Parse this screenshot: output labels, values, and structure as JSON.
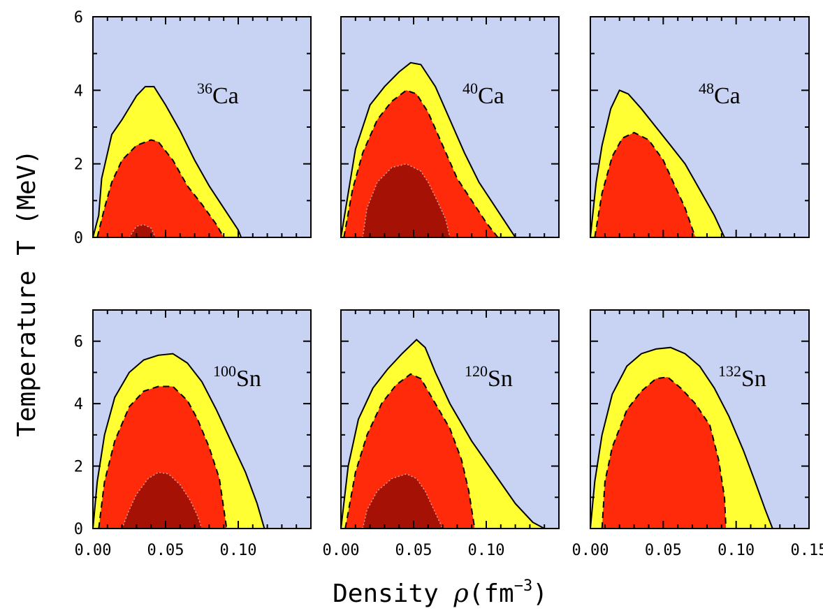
{
  "chart_data": {
    "type": "area",
    "xlabel_text": "Density ",
    "xlabel_symbol": "ρ",
    "xlabel_unit": "(fm",
    "xlabel_exp": "−3",
    "xlabel_close": ")",
    "ylabel": "Temperature T (MeV)",
    "xlim": [
      0.0,
      0.15
    ],
    "colors": {
      "background": "#c8d3f3",
      "outer": "#ffff33",
      "middle": "#ff2a0a",
      "inner": "#a51105"
    },
    "panels": [
      {
        "row": 0,
        "col": 0,
        "mass": "36",
        "element": "Ca",
        "ylim": [
          0,
          6
        ],
        "yticks": [
          "0",
          "2",
          "4",
          "6"
        ],
        "xticks": [],
        "outer": [
          [
            0.0,
            0
          ],
          [
            0.004,
            0.6
          ],
          [
            0.006,
            1.6
          ],
          [
            0.013,
            2.8
          ],
          [
            0.02,
            3.2
          ],
          [
            0.03,
            3.85
          ],
          [
            0.036,
            4.1
          ],
          [
            0.042,
            4.1
          ],
          [
            0.05,
            3.6
          ],
          [
            0.06,
            2.9
          ],
          [
            0.07,
            2.1
          ],
          [
            0.08,
            1.4
          ],
          [
            0.09,
            0.8
          ],
          [
            0.1,
            0.2
          ],
          [
            0.102,
            0
          ]
        ],
        "middle": [
          [
            0.003,
            0
          ],
          [
            0.008,
            0.8
          ],
          [
            0.013,
            1.5
          ],
          [
            0.02,
            2.1
          ],
          [
            0.03,
            2.5
          ],
          [
            0.04,
            2.65
          ],
          [
            0.045,
            2.6
          ],
          [
            0.055,
            2.1
          ],
          [
            0.065,
            1.4
          ],
          [
            0.075,
            0.9
          ],
          [
            0.085,
            0.35
          ],
          [
            0.09,
            0
          ]
        ],
        "inner": [
          [
            0.025,
            0
          ],
          [
            0.03,
            0.3
          ],
          [
            0.035,
            0.35
          ],
          [
            0.04,
            0.25
          ],
          [
            0.043,
            0
          ]
        ]
      },
      {
        "row": 0,
        "col": 1,
        "mass": "40",
        "element": "Ca",
        "ylim": [
          0,
          6
        ],
        "yticks": [],
        "xticks": [],
        "outer": [
          [
            0.0,
            0
          ],
          [
            0.005,
            1.2
          ],
          [
            0.01,
            2.4
          ],
          [
            0.02,
            3.6
          ],
          [
            0.03,
            4.1
          ],
          [
            0.04,
            4.5
          ],
          [
            0.048,
            4.75
          ],
          [
            0.055,
            4.7
          ],
          [
            0.065,
            4.1
          ],
          [
            0.075,
            3.2
          ],
          [
            0.085,
            2.3
          ],
          [
            0.095,
            1.5
          ],
          [
            0.105,
            0.9
          ],
          [
            0.115,
            0.3
          ],
          [
            0.12,
            0
          ]
        ],
        "middle": [
          [
            0.002,
            0
          ],
          [
            0.008,
            1.3
          ],
          [
            0.015,
            2.3
          ],
          [
            0.025,
            3.2
          ],
          [
            0.035,
            3.7
          ],
          [
            0.045,
            4.0
          ],
          [
            0.052,
            3.9
          ],
          [
            0.06,
            3.4
          ],
          [
            0.07,
            2.5
          ],
          [
            0.08,
            1.6
          ],
          [
            0.09,
            1.0
          ],
          [
            0.1,
            0.4
          ],
          [
            0.108,
            0
          ]
        ],
        "inner": [
          [
            0.015,
            0
          ],
          [
            0.018,
            0.8
          ],
          [
            0.025,
            1.5
          ],
          [
            0.035,
            1.9
          ],
          [
            0.045,
            2.0
          ],
          [
            0.055,
            1.8
          ],
          [
            0.06,
            1.5
          ],
          [
            0.065,
            1.1
          ],
          [
            0.072,
            0.5
          ],
          [
            0.075,
            0
          ]
        ]
      },
      {
        "row": 0,
        "col": 2,
        "mass": "48",
        "element": "Ca",
        "ylim": [
          0,
          6
        ],
        "yticks": [],
        "xticks": [],
        "outer": [
          [
            0.0,
            0
          ],
          [
            0.004,
            1.5
          ],
          [
            0.008,
            2.5
          ],
          [
            0.014,
            3.5
          ],
          [
            0.02,
            4.0
          ],
          [
            0.026,
            3.9
          ],
          [
            0.035,
            3.5
          ],
          [
            0.045,
            3.0
          ],
          [
            0.055,
            2.5
          ],
          [
            0.065,
            2.0
          ],
          [
            0.075,
            1.3
          ],
          [
            0.085,
            0.6
          ],
          [
            0.092,
            0
          ]
        ],
        "middle": [
          [
            0.003,
            0
          ],
          [
            0.008,
            1.2
          ],
          [
            0.015,
            2.2
          ],
          [
            0.022,
            2.7
          ],
          [
            0.03,
            2.85
          ],
          [
            0.04,
            2.65
          ],
          [
            0.05,
            2.1
          ],
          [
            0.058,
            1.4
          ],
          [
            0.065,
            0.8
          ],
          [
            0.072,
            0
          ]
        ],
        "inner": []
      },
      {
        "row": 1,
        "col": 0,
        "mass": "100",
        "element": "Sn",
        "ylim": [
          0,
          7
        ],
        "yticks": [
          "0",
          "2",
          "4",
          "6"
        ],
        "xticks": [
          "0.00",
          "0.05",
          "0.10"
        ],
        "outer": [
          [
            0.0,
            0
          ],
          [
            0.003,
            1.5
          ],
          [
            0.008,
            3.0
          ],
          [
            0.015,
            4.2
          ],
          [
            0.025,
            5.0
          ],
          [
            0.035,
            5.4
          ],
          [
            0.045,
            5.55
          ],
          [
            0.055,
            5.6
          ],
          [
            0.065,
            5.3
          ],
          [
            0.075,
            4.7
          ],
          [
            0.085,
            3.8
          ],
          [
            0.095,
            2.8
          ],
          [
            0.105,
            1.8
          ],
          [
            0.113,
            0.8
          ],
          [
            0.118,
            0
          ]
        ],
        "middle": [
          [
            0.004,
            0
          ],
          [
            0.008,
            1.5
          ],
          [
            0.015,
            2.8
          ],
          [
            0.025,
            3.9
          ],
          [
            0.035,
            4.4
          ],
          [
            0.045,
            4.55
          ],
          [
            0.055,
            4.55
          ],
          [
            0.065,
            4.1
          ],
          [
            0.072,
            3.5
          ],
          [
            0.08,
            2.6
          ],
          [
            0.087,
            1.6
          ],
          [
            0.092,
            0
          ]
        ],
        "inner": [
          [
            0.02,
            0
          ],
          [
            0.025,
            0.6
          ],
          [
            0.03,
            1.1
          ],
          [
            0.038,
            1.6
          ],
          [
            0.045,
            1.8
          ],
          [
            0.052,
            1.75
          ],
          [
            0.06,
            1.4
          ],
          [
            0.067,
            0.9
          ],
          [
            0.072,
            0.4
          ],
          [
            0.075,
            0
          ]
        ]
      },
      {
        "row": 1,
        "col": 1,
        "mass": "120",
        "element": "Sn",
        "ylim": [
          0,
          7
        ],
        "yticks": [],
        "xticks": [
          "0.00",
          "0.05",
          "0.10"
        ],
        "outer": [
          [
            0.0,
            0
          ],
          [
            0.005,
            2.0
          ],
          [
            0.012,
            3.5
          ],
          [
            0.022,
            4.5
          ],
          [
            0.032,
            5.1
          ],
          [
            0.042,
            5.6
          ],
          [
            0.052,
            6.05
          ],
          [
            0.058,
            5.8
          ],
          [
            0.065,
            5.0
          ],
          [
            0.075,
            4.0
          ],
          [
            0.09,
            2.8
          ],
          [
            0.105,
            1.8
          ],
          [
            0.12,
            0.8
          ],
          [
            0.132,
            0.2
          ],
          [
            0.14,
            0
          ]
        ],
        "middle": [
          [
            0.003,
            0
          ],
          [
            0.01,
            1.8
          ],
          [
            0.018,
            3.0
          ],
          [
            0.028,
            4.0
          ],
          [
            0.038,
            4.6
          ],
          [
            0.048,
            4.95
          ],
          [
            0.055,
            4.8
          ],
          [
            0.065,
            4.0
          ],
          [
            0.075,
            3.2
          ],
          [
            0.083,
            2.2
          ],
          [
            0.088,
            1.2
          ],
          [
            0.092,
            0
          ]
        ],
        "inner": [
          [
            0.015,
            0
          ],
          [
            0.018,
            0.6
          ],
          [
            0.025,
            1.2
          ],
          [
            0.035,
            1.6
          ],
          [
            0.045,
            1.75
          ],
          [
            0.052,
            1.6
          ],
          [
            0.058,
            1.2
          ],
          [
            0.063,
            0.7
          ],
          [
            0.068,
            0.2
          ],
          [
            0.07,
            0
          ]
        ]
      },
      {
        "row": 1,
        "col": 2,
        "mass": "132",
        "element": "Sn",
        "ylim": [
          0,
          7
        ],
        "yticks": [],
        "xticks": [
          "0.00",
          "0.05",
          "0.10",
          "0.15"
        ],
        "outer": [
          [
            0.0,
            0
          ],
          [
            0.003,
            1.5
          ],
          [
            0.008,
            3.0
          ],
          [
            0.015,
            4.3
          ],
          [
            0.025,
            5.2
          ],
          [
            0.035,
            5.6
          ],
          [
            0.045,
            5.75
          ],
          [
            0.055,
            5.8
          ],
          [
            0.065,
            5.6
          ],
          [
            0.075,
            5.2
          ],
          [
            0.085,
            4.5
          ],
          [
            0.095,
            3.6
          ],
          [
            0.105,
            2.5
          ],
          [
            0.113,
            1.5
          ],
          [
            0.12,
            0.6
          ],
          [
            0.125,
            0
          ]
        ],
        "middle": [
          [
            0.008,
            0
          ],
          [
            0.01,
            1.5
          ],
          [
            0.015,
            2.6
          ],
          [
            0.025,
            3.8
          ],
          [
            0.035,
            4.4
          ],
          [
            0.045,
            4.8
          ],
          [
            0.053,
            4.85
          ],
          [
            0.062,
            4.5
          ],
          [
            0.072,
            4.0
          ],
          [
            0.082,
            3.3
          ],
          [
            0.088,
            2.2
          ],
          [
            0.092,
            1.0
          ],
          [
            0.093,
            0
          ]
        ],
        "inner": []
      }
    ]
  }
}
